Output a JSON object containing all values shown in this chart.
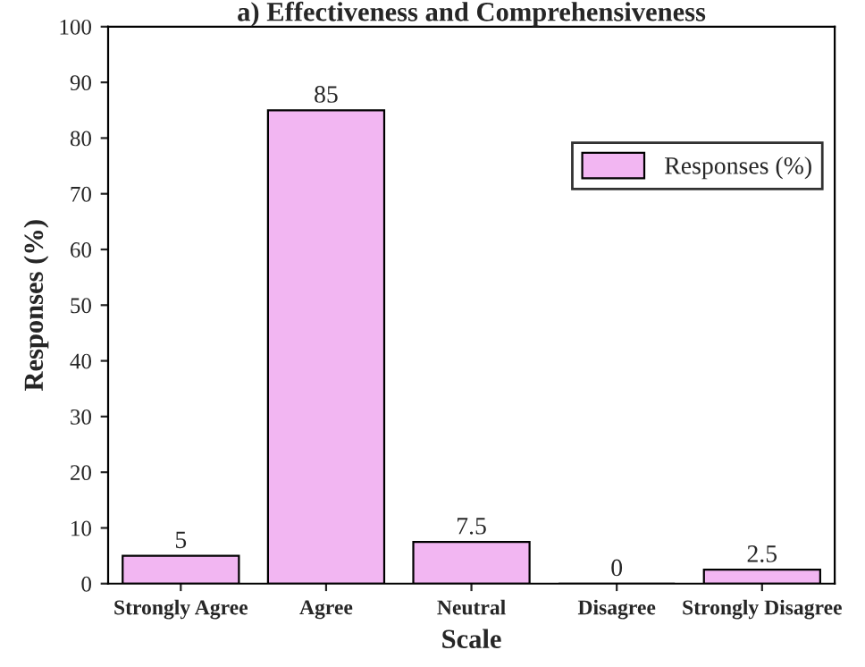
{
  "chart_data": {
    "type": "bar",
    "title": "a) Effectiveness and Comprehensiveness",
    "xlabel": "Scale",
    "ylabel": "Responses (%)",
    "categories": [
      "Strongly Agree",
      "Agree",
      "Neutral",
      "Disagree",
      "Strongly Disagree"
    ],
    "series": [
      {
        "name": "Responses (%)",
        "color": "#f2b6f2",
        "values": [
          5,
          85,
          7.5,
          0,
          2.5
        ]
      }
    ],
    "ylim": [
      0,
      100
    ],
    "yticks": [
      0,
      10,
      20,
      30,
      40,
      50,
      60,
      70,
      80,
      90,
      100
    ],
    "data_labels": true,
    "legend": "right",
    "grid": false
  }
}
